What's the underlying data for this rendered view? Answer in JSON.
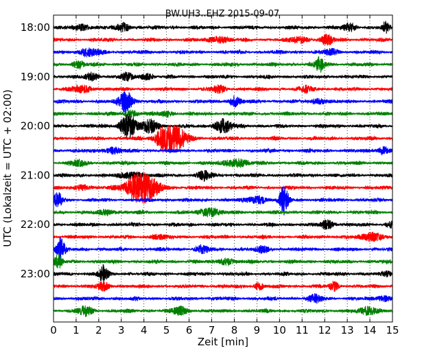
{
  "chart_data": {
    "type": "line",
    "title": "BW.UH3..EHZ 2015-09-07",
    "xlabel": "Zeit  [min]",
    "ylabel": "UTC (Lokalzeit = UTC + 02:00)",
    "xlim": [
      0,
      15
    ],
    "x_ticks": [
      0,
      1,
      2,
      3,
      4,
      5,
      6,
      7,
      8,
      9,
      10,
      11,
      12,
      13,
      14,
      15
    ],
    "y_ticks": [
      "18:00",
      "19:00",
      "20:00",
      "21:00",
      "22:00",
      "23:00"
    ],
    "trace_interval_min": 15,
    "grid": "vertical dotted",
    "series_colors": [
      "#000000",
      "#ff0000",
      "#0000ff",
      "#008000"
    ],
    "traces": [
      {
        "start": "18:00",
        "color": "#000000",
        "bursts": [
          {
            "t": 1.3,
            "a": 0.5,
            "w": 0.35
          },
          {
            "t": 3.1,
            "a": 0.9,
            "w": 0.25
          },
          {
            "t": 13.1,
            "a": 0.6,
            "w": 0.3
          },
          {
            "t": 14.7,
            "a": 0.8,
            "w": 0.15
          }
        ]
      },
      {
        "start": "18:15",
        "color": "#ff0000",
        "bursts": [
          {
            "t": 7.3,
            "a": 0.6,
            "w": 0.4
          },
          {
            "t": 10.9,
            "a": 0.5,
            "w": 0.4
          },
          {
            "t": 12.1,
            "a": 0.7,
            "w": 0.3
          }
        ]
      },
      {
        "start": "18:30",
        "color": "#0000ff",
        "bursts": [
          {
            "t": 1.6,
            "a": 0.6,
            "w": 0.5
          },
          {
            "t": 12.3,
            "a": 0.5,
            "w": 0.3
          }
        ]
      },
      {
        "start": "18:45",
        "color": "#008000",
        "bursts": [
          {
            "t": 1.1,
            "a": 0.5,
            "w": 0.3
          },
          {
            "t": 11.8,
            "a": 1.3,
            "w": 0.2
          }
        ]
      },
      {
        "start": "19:00",
        "color": "#000000",
        "bursts": [
          {
            "t": 1.7,
            "a": 0.6,
            "w": 0.3
          },
          {
            "t": 3.2,
            "a": 0.6,
            "w": 0.25
          },
          {
            "t": 4.1,
            "a": 0.5,
            "w": 0.3
          }
        ]
      },
      {
        "start": "19:15",
        "color": "#ff0000",
        "bursts": [
          {
            "t": 1.3,
            "a": 0.5,
            "w": 0.5
          },
          {
            "t": 7.3,
            "a": 0.6,
            "w": 0.3
          },
          {
            "t": 11.2,
            "a": 0.5,
            "w": 0.3
          }
        ]
      },
      {
        "start": "19:30",
        "color": "#0000ff",
        "bursts": [
          {
            "t": 3.2,
            "a": 1.8,
            "w": 0.3
          },
          {
            "t": 8.0,
            "a": 0.7,
            "w": 0.3
          },
          {
            "t": 11.8,
            "a": 0.5,
            "w": 0.3
          }
        ]
      },
      {
        "start": "19:45",
        "color": "#008000",
        "bursts": [
          {
            "t": 3.4,
            "a": 0.6,
            "w": 0.3
          },
          {
            "t": 5.0,
            "a": 0.5,
            "w": 0.3
          }
        ]
      },
      {
        "start": "20:00",
        "color": "#000000",
        "bursts": [
          {
            "t": 3.3,
            "a": 2.1,
            "w": 0.35
          },
          {
            "t": 4.3,
            "a": 1.1,
            "w": 0.35
          },
          {
            "t": 7.5,
            "a": 1.1,
            "w": 0.4
          }
        ]
      },
      {
        "start": "20:15",
        "color": "#ff0000",
        "bursts": [
          {
            "t": 5.3,
            "a": 2.1,
            "w": 0.6
          },
          {
            "t": 4.8,
            "a": 1.2,
            "w": 0.3
          }
        ]
      },
      {
        "start": "20:30",
        "color": "#0000ff",
        "bursts": [
          {
            "t": 2.6,
            "a": 0.5,
            "w": 0.4
          },
          {
            "t": 14.6,
            "a": 0.6,
            "w": 0.3
          }
        ]
      },
      {
        "start": "20:45",
        "color": "#008000",
        "bursts": [
          {
            "t": 1.1,
            "a": 0.5,
            "w": 0.3
          },
          {
            "t": 8.1,
            "a": 0.7,
            "w": 0.5
          }
        ]
      },
      {
        "start": "21:00",
        "color": "#000000",
        "bursts": [
          {
            "t": 3.5,
            "a": 0.6,
            "w": 0.5
          },
          {
            "t": 6.7,
            "a": 0.7,
            "w": 0.3
          }
        ]
      },
      {
        "start": "21:15",
        "color": "#ff0000",
        "bursts": [
          {
            "t": 3.9,
            "a": 2.7,
            "w": 0.7
          },
          {
            "t": 1.3,
            "a": 0.5,
            "w": 0.3
          }
        ]
      },
      {
        "start": "21:30",
        "color": "#0000ff",
        "bursts": [
          {
            "t": 0.2,
            "a": 1.2,
            "w": 0.2
          },
          {
            "t": 9.0,
            "a": 0.7,
            "w": 0.4
          },
          {
            "t": 10.2,
            "a": 2.3,
            "w": 0.2
          }
        ]
      },
      {
        "start": "21:45",
        "color": "#008000",
        "bursts": [
          {
            "t": 6.9,
            "a": 0.8,
            "w": 0.4
          },
          {
            "t": 2.4,
            "a": 0.4,
            "w": 0.4
          }
        ]
      },
      {
        "start": "22:00",
        "color": "#000000",
        "bursts": [
          {
            "t": 12.1,
            "a": 0.7,
            "w": 0.3
          },
          {
            "t": 14.9,
            "a": 0.5,
            "w": 0.2
          }
        ]
      },
      {
        "start": "22:15",
        "color": "#ff0000",
        "bursts": [
          {
            "t": 14.1,
            "a": 0.8,
            "w": 0.4
          },
          {
            "t": 4.6,
            "a": 0.4,
            "w": 0.3
          }
        ]
      },
      {
        "start": "22:30",
        "color": "#0000ff",
        "bursts": [
          {
            "t": 0.3,
            "a": 1.8,
            "w": 0.2
          },
          {
            "t": 6.6,
            "a": 0.6,
            "w": 0.3
          },
          {
            "t": 9.3,
            "a": 0.5,
            "w": 0.3
          }
        ]
      },
      {
        "start": "22:45",
        "color": "#008000",
        "bursts": [
          {
            "t": 0.2,
            "a": 1.0,
            "w": 0.2
          },
          {
            "t": 7.6,
            "a": 0.6,
            "w": 0.3
          }
        ]
      },
      {
        "start": "23:00",
        "color": "#000000",
        "bursts": [
          {
            "t": 2.2,
            "a": 1.4,
            "w": 0.2
          },
          {
            "t": 14.8,
            "a": 0.4,
            "w": 0.2
          }
        ]
      },
      {
        "start": "23:15",
        "color": "#ff0000",
        "bursts": [
          {
            "t": 2.2,
            "a": 0.6,
            "w": 0.3
          },
          {
            "t": 9.1,
            "a": 0.6,
            "w": 0.2
          },
          {
            "t": 12.4,
            "a": 0.7,
            "w": 0.2
          }
        ]
      },
      {
        "start": "23:30",
        "color": "#0000ff",
        "bursts": [
          {
            "t": 11.6,
            "a": 0.6,
            "w": 0.3
          },
          {
            "t": 14.6,
            "a": 0.5,
            "w": 0.3
          }
        ]
      },
      {
        "start": "23:45",
        "color": "#008000",
        "bursts": [
          {
            "t": 1.4,
            "a": 0.8,
            "w": 0.3
          },
          {
            "t": 5.6,
            "a": 0.7,
            "w": 0.3
          },
          {
            "t": 14.0,
            "a": 0.7,
            "w": 0.4
          }
        ]
      }
    ]
  }
}
